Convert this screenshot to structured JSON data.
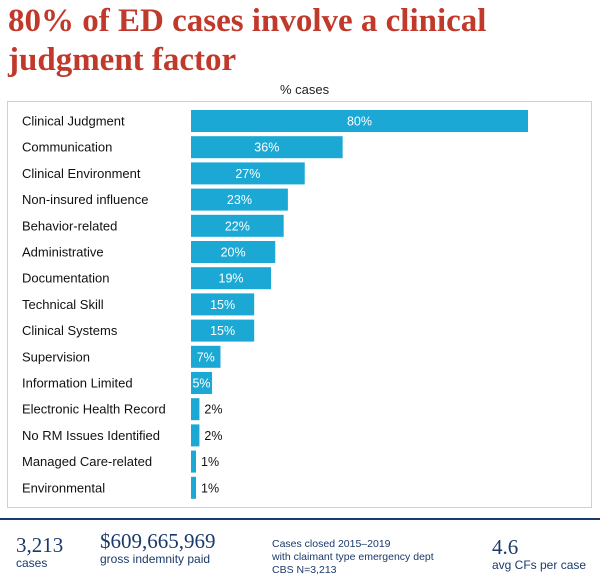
{
  "title": "80% of ED cases involve a clinical judgment factor",
  "colors": {
    "title": "#c0392b",
    "bar": "#1ba8d4",
    "footer": "#1a3a6b"
  },
  "chart_data": {
    "type": "bar",
    "orientation": "horizontal",
    "title": "80% of ED cases involve a clinical judgment factor",
    "subtitle": "% cases",
    "categories": [
      "Clinical Judgment",
      "Communication",
      "Clinical Environment",
      "Non-insured influence",
      "Behavior-related",
      "Administrative",
      "Documentation",
      "Technical Skill",
      "Clinical Systems",
      "Supervision",
      "Information Limited",
      "Electronic Health Record",
      "No RM Issues Identified",
      "Managed Care-related",
      "Environmental"
    ],
    "values": [
      80,
      36,
      27,
      23,
      22,
      20,
      19,
      15,
      15,
      7,
      5,
      2,
      2,
      1,
      1
    ],
    "data_labels": [
      "80%",
      "36%",
      "27%",
      "23%",
      "22%",
      "20%",
      "19%",
      "15%",
      "15%",
      "7%",
      "5%",
      "2%",
      "2%",
      "1%",
      "1%"
    ],
    "xlim": [
      0,
      80
    ],
    "grid": false,
    "legend": "none"
  },
  "footer": {
    "cases_value": "3,213",
    "cases_label": "cases",
    "indemnity_value": "$609,665,969",
    "indemnity_label": "gross indemnity paid",
    "note_line1": "Cases closed 2015–2019",
    "note_line2": "with claimant type emergency dept",
    "note_line3": "CBS N=3,213",
    "cf_value": "4.6",
    "cf_label": "avg CFs per case"
  }
}
